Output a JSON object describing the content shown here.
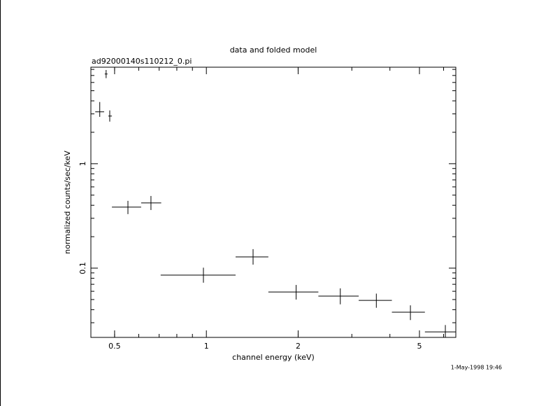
{
  "chart_data": {
    "type": "scatter",
    "title": "data and folded model",
    "subtitle": "ad92000140s110212_0.pi",
    "x_label": "channel energy (keV)",
    "y_label": "normalized counts/sec/keV",
    "timestamp": "1-May-1998 19:46",
    "log_x": true,
    "log_y": true,
    "xlim": [
      0.418,
      6.58
    ],
    "ylim": [
      0.0217,
      8.4
    ],
    "xticks": [
      0.5,
      1,
      2,
      5
    ],
    "yticks": [
      0.1,
      1
    ],
    "color": "#000000",
    "x": [
      0.447,
      0.469,
      0.482,
      0.553,
      0.658,
      0.978,
      1.423,
      1.97,
      2.75,
      3.61,
      4.67,
      6.08
    ],
    "x_low": [
      0.432,
      0.464,
      0.477,
      0.49,
      0.611,
      0.708,
      1.247,
      1.597,
      2.33,
      3.16,
      4.06,
      5.21
    ],
    "x_high": [
      0.462,
      0.474,
      0.49,
      0.611,
      0.711,
      1.247,
      1.597,
      2.33,
      3.16,
      4.06,
      5.21,
      6.58
    ],
    "values": [
      3.14,
      7.23,
      2.86,
      0.384,
      0.421,
      0.0857,
      0.128,
      0.0591,
      0.0539,
      0.0491,
      0.0378,
      0.0245
    ],
    "y_low": [
      2.81,
      6.6,
      2.53,
      0.329,
      0.36,
      0.0725,
      0.108,
      0.05,
      0.045,
      0.0417,
      0.0318,
      0.0217
    ],
    "y_high": [
      3.9,
      7.9,
      3.24,
      0.441,
      0.491,
      0.101,
      0.152,
      0.069,
      0.064,
      0.057,
      0.044,
      0.0285
    ]
  }
}
